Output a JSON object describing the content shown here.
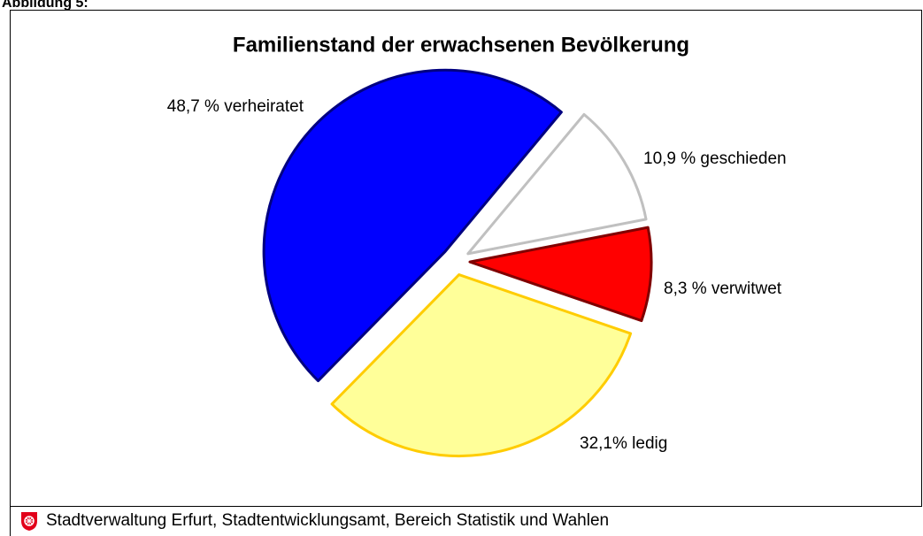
{
  "figure_label": "Abbildung 5:",
  "chart_data": {
    "type": "pie",
    "title": "Familienstand der erwachsenen Bevölkerung",
    "values": [
      10.9,
      8.3,
      32.1,
      48.7
    ],
    "value_labels": [
      "10,9 % geschieden",
      "8,3 % verwitwet",
      "32,1% ledig",
      "48,7 % verheiratet"
    ],
    "colors": [
      "#ffffff",
      "#ff0000",
      "#ffff99",
      "#0000ff"
    ],
    "edge_colors": [
      "#c0c0c0",
      "#800000",
      "#ffcc00",
      "#000080"
    ]
  },
  "footer": "Stadtverwaltung Erfurt, Stadtentwicklungsamt, Bereich Statistik und Wahlen"
}
